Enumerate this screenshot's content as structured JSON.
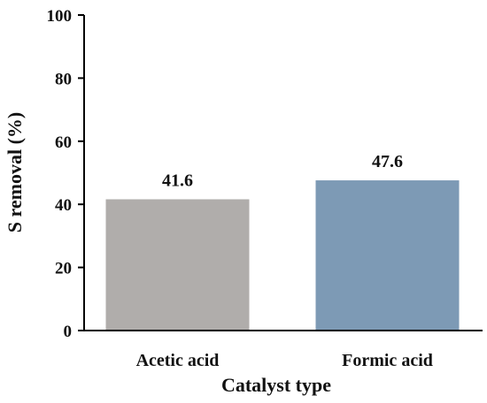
{
  "chart_data": {
    "type": "bar",
    "categories": [
      "Acetic acid",
      "Formic acid"
    ],
    "values": [
      41.6,
      47.6
    ],
    "data_labels": [
      "41.6",
      "47.6"
    ],
    "colors": [
      "#b0adab",
      "#7d9ab5"
    ],
    "axis_color": "#000000",
    "xlabel": "Catalyst type",
    "ylabel": "S removal (%)",
    "ylim": [
      0,
      100
    ],
    "yticks": [
      0,
      20,
      40,
      60,
      80,
      100
    ],
    "ytick_labels": [
      "0",
      "20",
      "40",
      "60",
      "80",
      "100"
    ],
    "grid": false,
    "legend": "none"
  }
}
